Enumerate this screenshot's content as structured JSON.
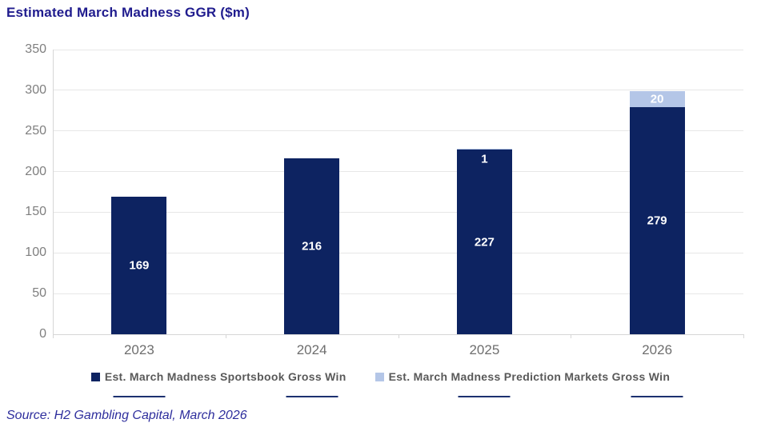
{
  "title": "Estimated March Madness GGR ($m)",
  "source": "Source: H2 Gambling Capital, March 2026",
  "colors": {
    "title_text": "#201c8e",
    "source_text": "#2e2e9d",
    "sportsbook_bar": "#0d2361",
    "prediction_bar": "#b4c6e7",
    "axis_text": "#7f7f7f",
    "category_text": "#6e6e6e",
    "legend_text": "#595959",
    "gridline": "#e7e7e7",
    "bar_label_text": "#ffffff"
  },
  "chart_data": {
    "type": "bar",
    "stacked": true,
    "title": "Estimated March Madness GGR ($m)",
    "categories": [
      "2023",
      "2024",
      "2025",
      "2026"
    ],
    "series": [
      {
        "name": "Est. March Madness Sportsbook Gross Win",
        "color": "#0d2361",
        "values": [
          169,
          216,
          227,
          279
        ],
        "labels": [
          "169",
          "216",
          "227",
          "279"
        ]
      },
      {
        "name": "Est. March Madness Prediction Markets Gross Win",
        "color": "#b4c6e7",
        "values": [
          0,
          0,
          1,
          20
        ],
        "labels": [
          "",
          "",
          "1",
          "20"
        ]
      }
    ],
    "xlabel": "",
    "ylabel": "",
    "ylim": [
      0,
      350
    ],
    "yticks": [
      0,
      50,
      100,
      150,
      200,
      250,
      300,
      350
    ],
    "grid": true,
    "legend_position": "bottom",
    "category_underline_marks": true
  }
}
